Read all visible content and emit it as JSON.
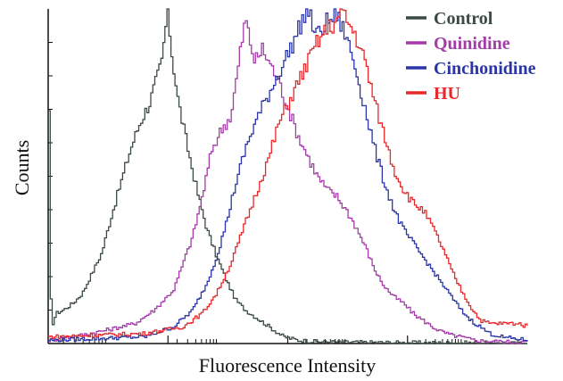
{
  "chart_data": {
    "type": "line",
    "xlabel": "Fluorescence Intensity",
    "ylabel": "Counts",
    "x_scale": "log",
    "xlim": [
      0,
      100
    ],
    "ylim": [
      0,
      100
    ],
    "x_major_ticks": [
      25,
      50,
      75
    ],
    "x_minor_ticks": [
      3.2,
      5.6,
      7.3,
      8.6,
      9.7,
      10.6,
      11.3,
      12.0,
      26.9,
      29.1,
      30.8,
      32.0,
      33.0,
      33.8,
      34.5,
      35.1,
      54.0,
      56.2,
      57.8,
      58.9,
      59.9,
      60.7,
      61.4,
      62.0,
      78.8,
      80.8,
      82.3,
      83.4,
      84.3,
      85.0,
      85.6,
      86.2
    ],
    "y_ticks": [
      10,
      20,
      30,
      40,
      50,
      60,
      70,
      80,
      90
    ],
    "legend_position": "top-right",
    "series": [
      {
        "name": "Control",
        "color": "#3b4a44",
        "points": [
          [
            0.0,
            68
          ],
          [
            0.3,
            15
          ],
          [
            0.8,
            6
          ],
          [
            1.5,
            9
          ],
          [
            3,
            10
          ],
          [
            5,
            12
          ],
          [
            7,
            15
          ],
          [
            9,
            21
          ],
          [
            11,
            27
          ],
          [
            13,
            38
          ],
          [
            15,
            48
          ],
          [
            17,
            58
          ],
          [
            19,
            66
          ],
          [
            21,
            72
          ],
          [
            22.5,
            79
          ],
          [
            23.5,
            84
          ],
          [
            24.3,
            94
          ],
          [
            24.8,
            100
          ],
          [
            25.5,
            88
          ],
          [
            27,
            72
          ],
          [
            29,
            58
          ],
          [
            31,
            45
          ],
          [
            33,
            34
          ],
          [
            35,
            26
          ],
          [
            37,
            19
          ],
          [
            39,
            13
          ],
          [
            41,
            10
          ],
          [
            43,
            8
          ],
          [
            45,
            6
          ],
          [
            47,
            4
          ],
          [
            49,
            2
          ],
          [
            52,
            1
          ],
          [
            55,
            0.6
          ],
          [
            60,
            0.4
          ],
          [
            70,
            0.3
          ],
          [
            80,
            0.2
          ],
          [
            90,
            0.2
          ],
          [
            100,
            0
          ]
        ]
      },
      {
        "name": "Quinidine",
        "color": "#a33ca8",
        "points": [
          [
            0,
            1
          ],
          [
            5,
            2
          ],
          [
            12,
            4
          ],
          [
            18,
            6
          ],
          [
            22,
            10
          ],
          [
            26,
            16
          ],
          [
            28,
            24
          ],
          [
            30,
            32
          ],
          [
            32,
            44
          ],
          [
            34,
            58
          ],
          [
            36,
            64
          ],
          [
            38,
            68
          ],
          [
            39,
            78
          ],
          [
            40,
            88
          ],
          [
            41,
            97
          ],
          [
            42,
            90
          ],
          [
            43,
            84
          ],
          [
            44.5,
            88
          ],
          [
            46,
            84
          ],
          [
            48,
            78
          ],
          [
            50,
            70
          ],
          [
            52,
            62
          ],
          [
            54,
            56
          ],
          [
            56,
            50
          ],
          [
            58,
            46
          ],
          [
            60,
            44
          ],
          [
            62,
            40
          ],
          [
            64,
            35
          ],
          [
            66,
            29
          ],
          [
            68,
            22
          ],
          [
            70,
            17
          ],
          [
            72,
            14
          ],
          [
            74,
            12
          ],
          [
            76,
            9
          ],
          [
            78,
            7
          ],
          [
            80,
            5
          ],
          [
            82,
            3.5
          ],
          [
            84,
            2.5
          ],
          [
            86,
            2
          ],
          [
            88,
            1.2
          ],
          [
            90,
            0.8
          ],
          [
            95,
            0.5
          ],
          [
            100,
            0.4
          ]
        ]
      },
      {
        "name": "Cinchonidine",
        "color": "#2a35a8",
        "points": [
          [
            0,
            1
          ],
          [
            10,
            1.5
          ],
          [
            20,
            2
          ],
          [
            26,
            5
          ],
          [
            30,
            10
          ],
          [
            33,
            18
          ],
          [
            35,
            26
          ],
          [
            37,
            36
          ],
          [
            39,
            48
          ],
          [
            41,
            58
          ],
          [
            43,
            66
          ],
          [
            45,
            72
          ],
          [
            47,
            78
          ],
          [
            49,
            84
          ],
          [
            51,
            90
          ],
          [
            53,
            97
          ],
          [
            54,
            100
          ],
          [
            55,
            95
          ],
          [
            56,
            92
          ],
          [
            58,
            96
          ],
          [
            60,
            98
          ],
          [
            62,
            92
          ],
          [
            64,
            82
          ],
          [
            66,
            70
          ],
          [
            68,
            58
          ],
          [
            70,
            48
          ],
          [
            72,
            40
          ],
          [
            74,
            34
          ],
          [
            76,
            30
          ],
          [
            78,
            26
          ],
          [
            80,
            22
          ],
          [
            82,
            18
          ],
          [
            84,
            14
          ],
          [
            86,
            10
          ],
          [
            88,
            7
          ],
          [
            90,
            5
          ],
          [
            92,
            3
          ],
          [
            95,
            1.8
          ],
          [
            100,
            1
          ]
        ]
      },
      {
        "name": "HU",
        "color": "#e8282a",
        "points": [
          [
            0,
            2
          ],
          [
            10,
            2.5
          ],
          [
            20,
            3
          ],
          [
            28,
            5
          ],
          [
            32,
            9
          ],
          [
            35,
            15
          ],
          [
            38,
            24
          ],
          [
            40,
            32
          ],
          [
            42,
            40
          ],
          [
            44,
            48
          ],
          [
            46,
            56
          ],
          [
            48,
            66
          ],
          [
            50,
            72
          ],
          [
            52,
            78
          ],
          [
            54,
            84
          ],
          [
            56,
            90
          ],
          [
            58,
            94
          ],
          [
            60,
            96
          ],
          [
            61,
            100
          ],
          [
            62,
            97
          ],
          [
            64,
            92
          ],
          [
            66,
            84
          ],
          [
            68,
            72
          ],
          [
            70,
            62
          ],
          [
            72,
            52
          ],
          [
            74,
            46
          ],
          [
            76,
            42
          ],
          [
            78,
            40
          ],
          [
            80,
            35
          ],
          [
            82,
            29
          ],
          [
            84,
            22
          ],
          [
            86,
            16
          ],
          [
            88,
            11
          ],
          [
            90,
            7
          ],
          [
            92,
            6
          ],
          [
            94,
            6
          ],
          [
            96,
            6
          ],
          [
            98,
            6
          ],
          [
            100,
            5
          ]
        ]
      }
    ]
  }
}
